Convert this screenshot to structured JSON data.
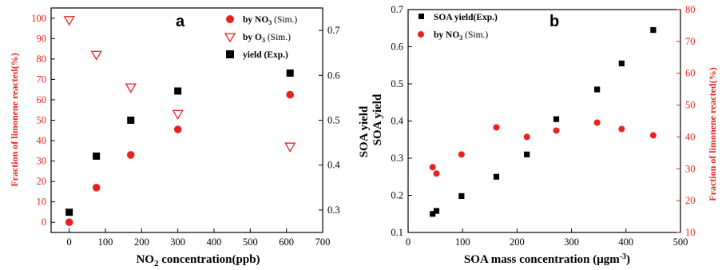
{
  "colors": {
    "black": "#000000",
    "red": "#e8221e"
  },
  "chart_data": [
    {
      "type": "scatter",
      "panel_label": "a",
      "xlabel_main": "NO",
      "xlabel_sub": "2",
      "xlabel_rest": " concentration(ppb)",
      "ylabel_left": "Fraction of limonene reacted(%)",
      "ylabel_right": "SOA yield",
      "xlim": [
        -50,
        700
      ],
      "ylim_left": [
        -5,
        105
      ],
      "ylim_right": [
        0.25,
        0.75
      ],
      "xticks": [
        0,
        100,
        200,
        300,
        400,
        500,
        600,
        700
      ],
      "yticks_left": [
        0,
        10,
        20,
        30,
        40,
        50,
        60,
        70,
        80,
        90,
        100
      ],
      "yticks_right": [
        0.3,
        0.4,
        0.5,
        0.6,
        0.7
      ],
      "legend_position": "top-right",
      "series": [
        {
          "name_main": "by NO",
          "name_sub": "3",
          "name_rest": " (Sim.)",
          "axis": "left",
          "marker": "filled-circle",
          "color": "#e8221e",
          "x": [
            0,
            75,
            170,
            300,
            610
          ],
          "y": [
            0,
            17,
            33,
            45.5,
            62.5
          ]
        },
        {
          "name_main": "by O",
          "name_sub": "3",
          "name_rest": " (Sim.)",
          "axis": "left",
          "marker": "open-triangle-down",
          "color": "#e8221e",
          "x": [
            0,
            75,
            170,
            300,
            610
          ],
          "y": [
            99,
            82,
            66,
            53,
            37
          ]
        },
        {
          "name_main": "yield (Exp.)",
          "name_sub": "",
          "name_rest": "",
          "axis": "right",
          "marker": "filled-square",
          "color": "#000000",
          "x": [
            0,
            75,
            170,
            300,
            610
          ],
          "y": [
            0.295,
            0.42,
            0.5,
            0.565,
            0.605
          ]
        }
      ]
    },
    {
      "type": "scatter",
      "panel_label": "b",
      "xlabel_main": "SOA mass concentration (μgm",
      "xlabel_sup": "-3",
      "xlabel_rest": ")",
      "ylabel_left": "SOA yield",
      "ylabel_right": "Fraction of limonene reacted(%)",
      "xlim": [
        0,
        500
      ],
      "ylim_left": [
        0.1,
        0.7
      ],
      "ylim_right": [
        10,
        80
      ],
      "xticks": [
        0,
        100,
        200,
        300,
        400,
        500
      ],
      "yticks_left": [
        0.1,
        0.2,
        0.3,
        0.4,
        0.5,
        0.6,
        0.7
      ],
      "yticks_right": [
        10,
        20,
        30,
        40,
        50,
        60,
        70,
        80
      ],
      "legend_position": "top-left",
      "series": [
        {
          "name_main": "SOA yield(Exp.)",
          "name_sub": "",
          "name_rest": "",
          "axis": "left",
          "marker": "filled-square",
          "color": "#000000",
          "x": [
            45,
            52,
            98,
            162,
            218,
            272,
            347,
            392,
            450
          ],
          "y": [
            0.15,
            0.158,
            0.198,
            0.25,
            0.31,
            0.405,
            0.485,
            0.555,
            0.645
          ]
        },
        {
          "name_main": "by NO",
          "name_sub": "3",
          "name_rest": " (Sim.)",
          "axis": "right",
          "marker": "filled-circle",
          "color": "#e8221e",
          "x": [
            45,
            52,
            98,
            162,
            218,
            272,
            347,
            392,
            450
          ],
          "y": [
            30.5,
            28.5,
            34.5,
            43,
            40,
            42,
            44.5,
            42.5,
            40.5
          ]
        }
      ]
    }
  ]
}
